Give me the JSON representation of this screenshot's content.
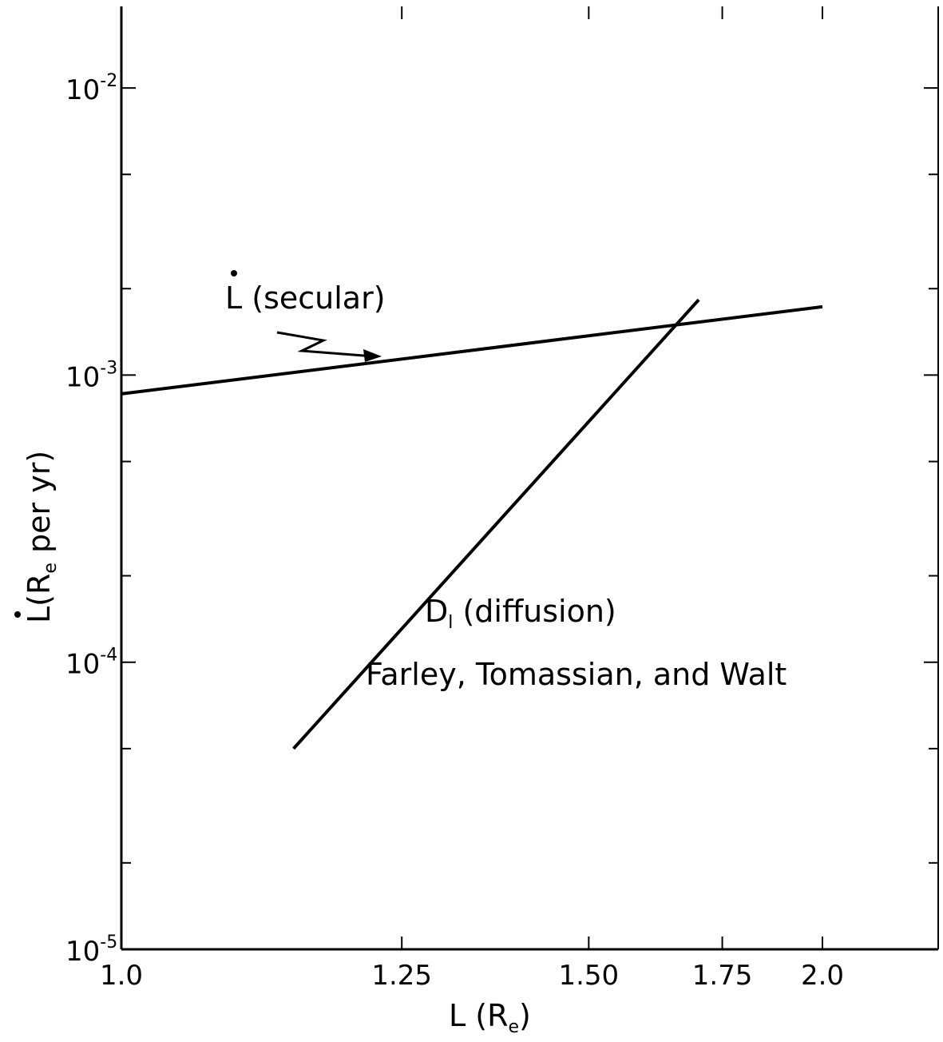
{
  "chart_data": {
    "type": "line",
    "x_scale": "reciprocal",
    "y_scale": "log",
    "xlim": [
      1.0,
      2.25
    ],
    "ylim": [
      1e-05,
      0.02
    ],
    "x_ticks": [
      {
        "value": 1.0,
        "label": "1.0"
      },
      {
        "value": 1.25,
        "label": "1.25"
      },
      {
        "value": 1.5,
        "label": "1.50"
      },
      {
        "value": 1.75,
        "label": "1.75"
      },
      {
        "value": 2.0,
        "label": "2.0"
      }
    ],
    "y_ticks": [
      {
        "value": 1e-05,
        "base": "10",
        "exp": "-5"
      },
      {
        "value": 0.0001,
        "base": "10",
        "exp": "-4"
      },
      {
        "value": 0.001,
        "base": "10",
        "exp": "-3"
      },
      {
        "value": 0.01,
        "base": "10",
        "exp": "-2"
      }
    ],
    "y_minor_ticks": [
      2e-05,
      5e-05,
      0.0002,
      0.0005,
      0.002,
      0.005
    ],
    "xlabel": {
      "main": "L (R",
      "sub": "e",
      "end": ")"
    },
    "ylabel": {
      "pre": "L(R",
      "sub": "e",
      "post": " per yr)"
    },
    "grid": false,
    "series": [
      {
        "x": [
          1.0,
          2.0
        ],
        "y": [
          0.00086,
          0.00173
        ]
      },
      {
        "x": [
          1.14,
          1.7
        ],
        "y": [
          5e-05,
          0.00183
        ]
      }
    ],
    "annotations": {
      "secular_label": "L (secular)",
      "diffusion_label_main": "D",
      "diffusion_label_sub": "l",
      "diffusion_label_rest": " (diffusion)",
      "authors": "Farley, Tomassian, and Walt"
    }
  }
}
